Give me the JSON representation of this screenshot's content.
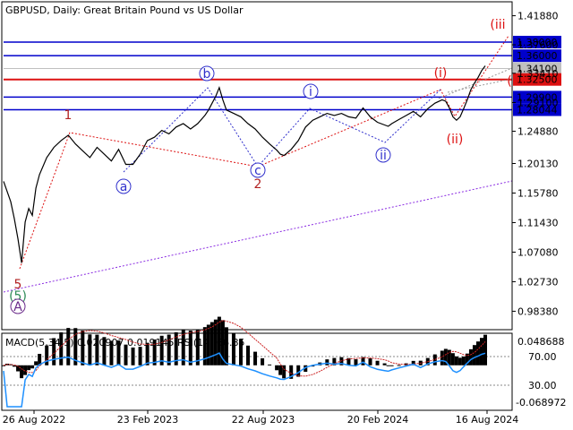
{
  "chart_data": {
    "type": "line",
    "title": "GBPUSD, Daily:  Great Britain Pound vs US Dollar",
    "x_tick_labels": [
      "26 Aug 2022",
      "23 Feb 2023",
      "22 Aug 2023",
      "20 Feb 2024",
      "16 Aug 2024"
    ],
    "price_axis": {
      "ticks": [
        "1.41880",
        "1.37600",
        "1.33410",
        "1.29100",
        "1.24880",
        "1.20130",
        "1.15780",
        "1.11430",
        "1.07080",
        "1.02730",
        "0.98380"
      ],
      "ylim": [
        0.958,
        1.438
      ]
    },
    "levels": [
      {
        "label": "1.38000",
        "value": 1.38,
        "color": "#0000cc"
      },
      {
        "label": "1.36000",
        "value": 1.36,
        "color": "#0000cc"
      },
      {
        "label": "1.34100",
        "value": 1.341,
        "color": "#c0c0c0"
      },
      {
        "label": "1.32500",
        "value": 1.325,
        "color": "#dd1111"
      },
      {
        "label": "1.29900",
        "value": 1.299,
        "color": "#0000cc"
      },
      {
        "label": "1.28044",
        "value": 1.28044,
        "color": "#0000cc"
      }
    ],
    "price_series": {
      "name": "GBPUSD",
      "points": [
        [
          0,
          1.175
        ],
        [
          1,
          1.16
        ],
        [
          2,
          1.145
        ],
        [
          3,
          1.12
        ],
        [
          4,
          1.09
        ],
        [
          5,
          1.055
        ],
        [
          6,
          1.115
        ],
        [
          7,
          1.135
        ],
        [
          8,
          1.125
        ],
        [
          9,
          1.165
        ],
        [
          10,
          1.185
        ],
        [
          12,
          1.21
        ],
        [
          14,
          1.225
        ],
        [
          16,
          1.235
        ],
        [
          18,
          1.243
        ],
        [
          20,
          1.23
        ],
        [
          22,
          1.22
        ],
        [
          24,
          1.21
        ],
        [
          26,
          1.225
        ],
        [
          28,
          1.215
        ],
        [
          30,
          1.205
        ],
        [
          32,
          1.222
        ],
        [
          34,
          1.2
        ],
        [
          36,
          1.2
        ],
        [
          38,
          1.215
        ],
        [
          40,
          1.235
        ],
        [
          42,
          1.24
        ],
        [
          44,
          1.25
        ],
        [
          46,
          1.245
        ],
        [
          48,
          1.255
        ],
        [
          50,
          1.26
        ],
        [
          52,
          1.252
        ],
        [
          54,
          1.26
        ],
        [
          56,
          1.272
        ],
        [
          57,
          1.28
        ],
        [
          58,
          1.29
        ],
        [
          59,
          1.3
        ],
        [
          60,
          1.313
        ],
        [
          61,
          1.295
        ],
        [
          62,
          1.28
        ],
        [
          64,
          1.275
        ],
        [
          66,
          1.27
        ],
        [
          68,
          1.26
        ],
        [
          70,
          1.252
        ],
        [
          72,
          1.24
        ],
        [
          74,
          1.23
        ],
        [
          76,
          1.221
        ],
        [
          77,
          1.215
        ],
        [
          78,
          1.213
        ],
        [
          80,
          1.222
        ],
        [
          82,
          1.235
        ],
        [
          84,
          1.255
        ],
        [
          86,
          1.265
        ],
        [
          88,
          1.27
        ],
        [
          90,
          1.275
        ],
        [
          92,
          1.272
        ],
        [
          94,
          1.275
        ],
        [
          96,
          1.27
        ],
        [
          98,
          1.268
        ],
        [
          100,
          1.283
        ],
        [
          102,
          1.27
        ],
        [
          104,
          1.262
        ],
        [
          106,
          1.258
        ],
        [
          107,
          1.256
        ],
        [
          108,
          1.26
        ],
        [
          110,
          1.266
        ],
        [
          112,
          1.272
        ],
        [
          114,
          1.278
        ],
        [
          116,
          1.27
        ],
        [
          118,
          1.282
        ],
        [
          120,
          1.29
        ],
        [
          122,
          1.295
        ],
        [
          123,
          1.293
        ],
        [
          124,
          1.283
        ],
        [
          125,
          1.27
        ],
        [
          126,
          1.265
        ],
        [
          127,
          1.27
        ],
        [
          128,
          1.282
        ],
        [
          129,
          1.295
        ],
        [
          130,
          1.31
        ],
        [
          131,
          1.32
        ],
        [
          132,
          1.328
        ],
        [
          133,
          1.338
        ],
        [
          134,
          1.345
        ]
      ]
    },
    "wave_labels": {
      "a": "a",
      "b": "b",
      "c": "c",
      "i": "i",
      "ii": "ii",
      "one": "1",
      "two": "2",
      "five": "5",
      "five_green": "(5)",
      "A": "A",
      "paren_i": "(i)",
      "paren_ii": "(ii)",
      "paren_iii": "(iii"
    },
    "indicator": {
      "label": "MACD(5,34,5) 0.020907 0.019145 RSI(14) 66.85",
      "ticks": [
        "0.048688",
        "70.00",
        "30.00",
        "-0.068972"
      ]
    }
  }
}
